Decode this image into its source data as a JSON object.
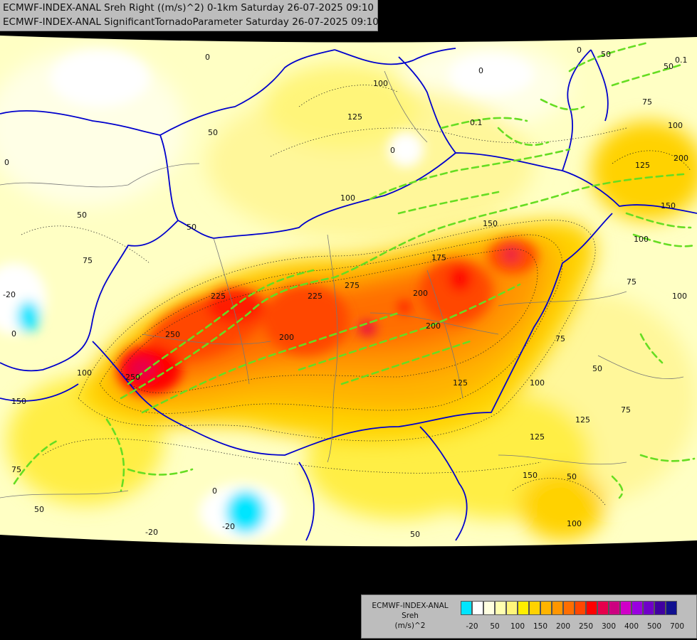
{
  "title": {
    "line1": "ECMWF-INDEX-ANAL Sreh Right ((m/s)^2) 0-1km Saturday 26-07-2025 09:10",
    "line2": "ECMWF-INDEX-ANAL SignificantTornadoParameter Saturday 26-07-2025 09:10"
  },
  "legend": {
    "name_line1": "ECMWF-INDEX-ANAL",
    "name_line2": "Sreh",
    "name_line3": "(m/s)^2",
    "colors": [
      "#00e5ff",
      "#ffffff",
      "#ffffe0",
      "#ffffb0",
      "#fff57a",
      "#ffee00",
      "#ffd200",
      "#ffb400",
      "#ff9600",
      "#ff6e00",
      "#ff4600",
      "#ff0000",
      "#e6004c",
      "#cc0080",
      "#d000c8",
      "#9a00e0",
      "#7000c8",
      "#4000a0",
      "#101090"
    ],
    "ticks": [
      "-20",
      "50",
      "100",
      "150",
      "200",
      "250",
      "300",
      "400",
      "500",
      "700"
    ]
  },
  "contour_labels": [
    "0",
    "0",
    "0",
    "0",
    "0",
    "0",
    "0",
    "50",
    "50",
    "50",
    "50",
    "50",
    "50",
    "50",
    "50",
    "50",
    "75",
    "75",
    "75",
    "75",
    "75",
    "75",
    "100",
    "100",
    "100",
    "100",
    "100",
    "100",
    "100",
    "100",
    "125",
    "125",
    "125",
    "125",
    "125",
    "150",
    "150",
    "150",
    "150",
    "175",
    "200",
    "200",
    "200",
    "200",
    "225",
    "225",
    "250",
    "250",
    "275",
    "-20",
    "-20",
    "-20"
  ],
  "stp_labels": [
    "0.1",
    "0.1"
  ],
  "colors": {
    "sea_background": "#000000",
    "border_line": "#0000cc",
    "stp_contour": "#66dd22"
  }
}
